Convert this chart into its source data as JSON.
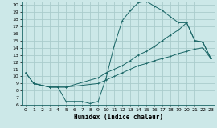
{
  "xlabel": "Humidex (Indice chaleur)",
  "xlim": [
    -0.5,
    23.5
  ],
  "ylim": [
    6,
    20.5
  ],
  "xticks": [
    0,
    1,
    2,
    3,
    4,
    5,
    6,
    7,
    8,
    9,
    10,
    11,
    12,
    13,
    14,
    15,
    16,
    17,
    18,
    19,
    20,
    21,
    22,
    23
  ],
  "yticks": [
    6,
    7,
    8,
    9,
    10,
    11,
    12,
    13,
    14,
    15,
    16,
    17,
    18,
    19,
    20
  ],
  "bg_color": "#cce8e8",
  "grid_color": "#aacccc",
  "line_color": "#1a6666",
  "curve1_x": [
    0,
    1,
    3,
    4,
    5,
    6,
    7,
    8,
    9,
    10,
    11,
    12,
    13,
    14,
    15,
    16,
    17,
    18,
    19,
    20,
    21,
    22,
    23
  ],
  "curve1_y": [
    10.5,
    9.0,
    8.5,
    8.5,
    6.5,
    6.5,
    6.5,
    6.2,
    6.5,
    9.8,
    14.3,
    17.8,
    19.2,
    20.3,
    20.5,
    19.8,
    19.2,
    18.3,
    17.5,
    17.5,
    15.0,
    14.8,
    12.5
  ],
  "curve2_x": [
    0,
    1,
    3,
    4,
    5,
    9,
    10,
    11,
    12,
    13,
    14,
    15,
    16,
    17,
    18,
    19,
    20,
    21,
    22,
    23
  ],
  "curve2_y": [
    10.5,
    9.0,
    8.5,
    8.5,
    8.5,
    9.8,
    10.5,
    11.0,
    11.5,
    12.2,
    13.0,
    13.5,
    14.2,
    15.0,
    15.8,
    16.5,
    17.5,
    15.0,
    14.8,
    12.5
  ],
  "curve3_x": [
    1,
    3,
    4,
    5,
    9,
    10,
    11,
    12,
    13,
    14,
    15,
    16,
    17,
    18,
    19,
    20,
    21,
    22,
    23
  ],
  "curve3_y": [
    9.0,
    8.5,
    8.5,
    8.5,
    9.0,
    9.5,
    10.0,
    10.5,
    11.0,
    11.5,
    11.8,
    12.2,
    12.5,
    12.8,
    13.2,
    13.5,
    13.8,
    14.0,
    12.5
  ]
}
